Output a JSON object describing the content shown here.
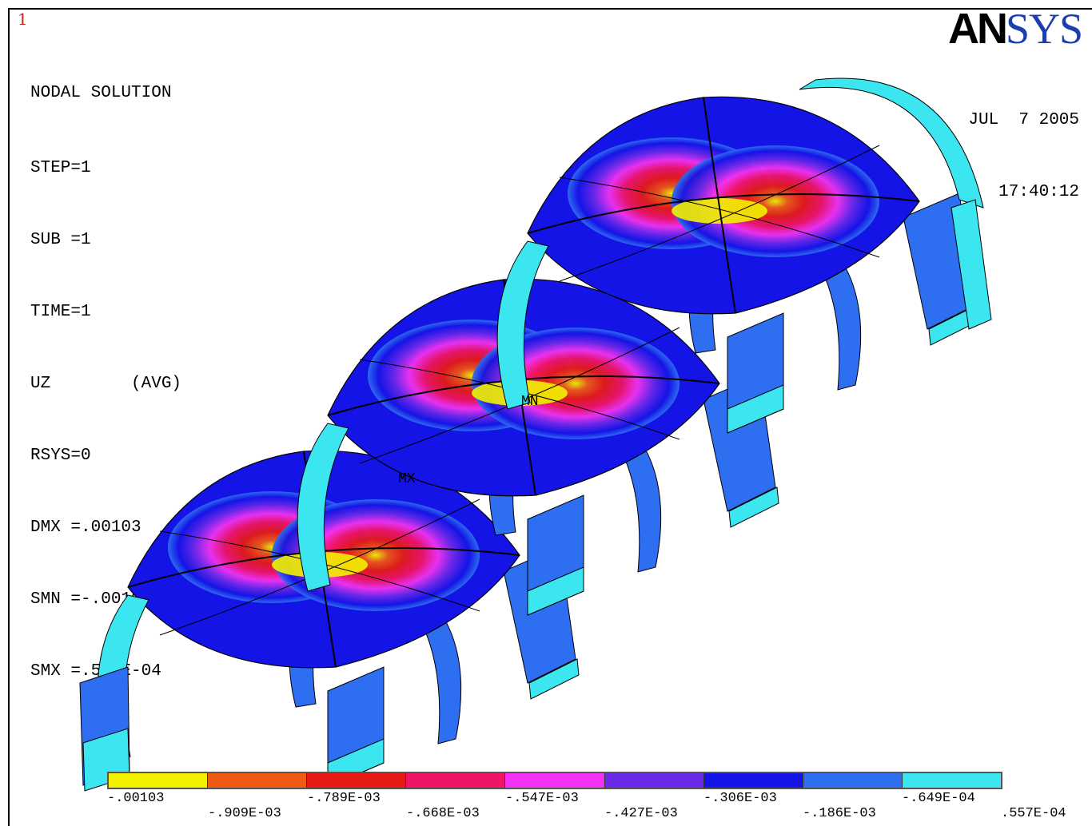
{
  "window_number": "1",
  "info": {
    "title": "NODAL SOLUTION",
    "lines": [
      "STEP=1",
      "SUB =1",
      "TIME=1",
      "UZ        (AVG)",
      "RSYS=0",
      "DMX =.00103",
      "SMN =-.00103",
      "SMX =.557E-04"
    ]
  },
  "logo": {
    "an": "AN",
    "sys": "SYS"
  },
  "date": "JUL  7 2005",
  "time": "17:40:12",
  "markers": {
    "mn": "MN",
    "mx": "MX"
  },
  "colors": {
    "yellow": "#f2f200",
    "orange": "#f05a14",
    "red": "#e61a14",
    "crimson": "#f01464",
    "magenta": "#f232f0",
    "violet": "#6a28e8",
    "blue": "#1414e6",
    "midblue": "#2e6ef0",
    "cyan": "#3ce6f0"
  },
  "legend": {
    "swatches": [
      "#f2f200",
      "#f05a14",
      "#e61a14",
      "#f01464",
      "#f232f0",
      "#6a28e8",
      "#1414e6",
      "#2e6ef0",
      "#3ce6f0"
    ],
    "labels_top": [
      "-.00103",
      "-.789E-03",
      "-.547E-03",
      "-.306E-03",
      "-.649E-04"
    ],
    "labels_bottom": [
      "-.909E-03",
      "-.668E-03",
      "-.427E-03",
      "-.186E-03",
      ".557E-04"
    ]
  }
}
